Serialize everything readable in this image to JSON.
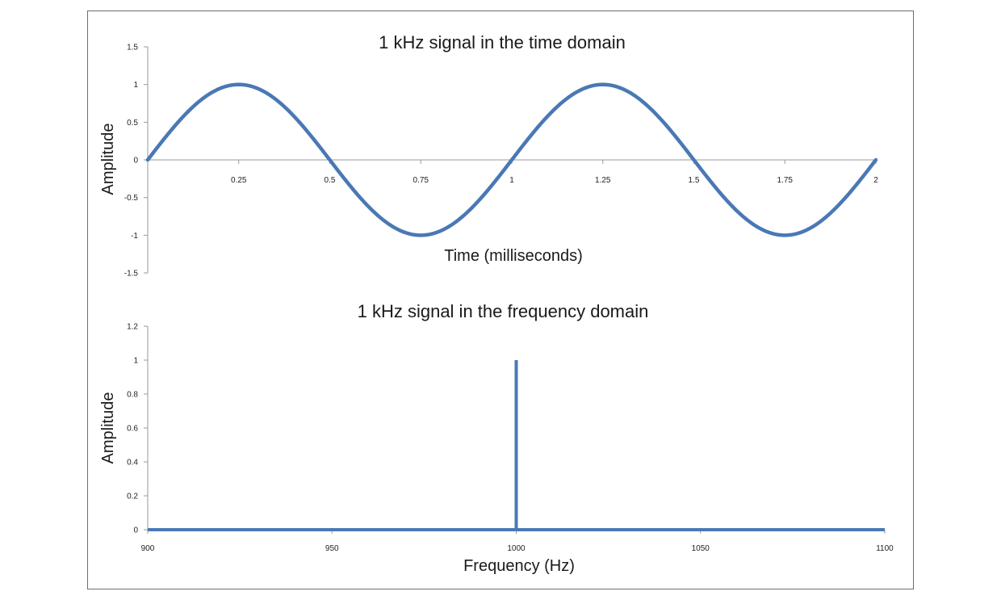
{
  "colors": {
    "series": "#4a78b5",
    "axis": "#9a9a9a"
  },
  "chart_data": [
    {
      "type": "line",
      "title": "1 kHz signal in the time domain",
      "xlabel": "Time (milliseconds)",
      "ylabel": "Amplitude",
      "xlim": [
        0,
        2
      ],
      "ylim": [
        -1.5,
        1.5
      ],
      "x_ticks": [
        0.25,
        0.5,
        0.75,
        1,
        1.25,
        1.5,
        1.75,
        2
      ],
      "x_tick_labels": [
        "0.25",
        "0.5",
        "0.75",
        "1",
        "1.25",
        "1.5",
        "1.75",
        "2"
      ],
      "y_ticks": [
        1.5,
        1,
        0.5,
        0,
        -0.5,
        -1,
        -1.5
      ],
      "y_tick_labels": [
        "1.5",
        "1",
        "0.5",
        "0",
        "-0.5",
        "-1",
        "-1.5"
      ],
      "x_axis_at_y": 0,
      "grid": false,
      "series": [
        {
          "function": "sine",
          "frequency_khz": 1,
          "amplitude": 1,
          "x": [
            0,
            0.125,
            0.25,
            0.375,
            0.5,
            0.625,
            0.75,
            0.875,
            1,
            1.125,
            1.25,
            1.375,
            1.5,
            1.625,
            1.75,
            1.875,
            2
          ],
          "y": [
            0,
            0.707,
            1,
            0.707,
            0,
            -0.707,
            -1,
            -0.707,
            0,
            0.707,
            1,
            0.707,
            0,
            -0.707,
            -1,
            -0.707,
            0
          ]
        }
      ]
    },
    {
      "type": "line",
      "title": "1 kHz signal in the frequency domain",
      "xlabel": "Frequency (Hz)",
      "ylabel": "Amplitude",
      "xlim": [
        900,
        1100
      ],
      "ylim": [
        0,
        1.2
      ],
      "x_ticks": [
        900,
        950,
        1000,
        1050,
        1100
      ],
      "x_tick_labels": [
        "900",
        "950",
        "1000",
        "1050",
        "1100"
      ],
      "y_ticks": [
        1.2,
        1,
        0.8,
        0.6,
        0.4,
        0.2,
        0
      ],
      "y_tick_labels": [
        "1.2",
        "1",
        "0.8",
        "0.6",
        "0.4",
        "0.2",
        "0"
      ],
      "grid": false,
      "series": [
        {
          "x": [
            900,
            1000,
            1000,
            1000,
            1100
          ],
          "y": [
            0,
            0,
            1,
            0,
            0
          ]
        }
      ]
    }
  ]
}
